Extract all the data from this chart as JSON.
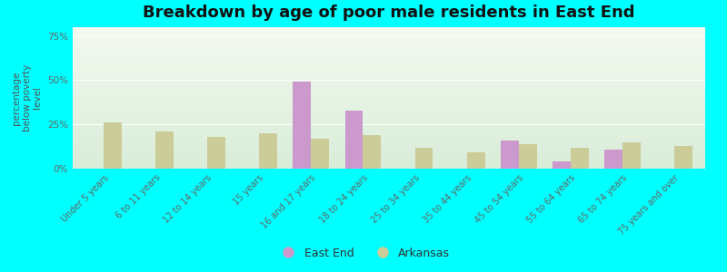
{
  "title": "Breakdown by age of poor male residents in East End",
  "ylabel": "percentage\nbelow poverty\nlevel",
  "categories": [
    "Under 5 years",
    "6 to 11 years",
    "12 to 14 years",
    "15 years",
    "16 and 17 years",
    "18 to 24 years",
    "25 to 34 years",
    "35 to 44 years",
    "45 to 54 years",
    "55 to 64 years",
    "65 to 74 years",
    "75 years and over"
  ],
  "east_end": [
    0,
    0,
    0,
    0,
    49,
    33,
    0,
    0,
    16,
    4,
    11,
    0
  ],
  "arkansas": [
    26,
    21,
    18,
    20,
    17,
    19,
    12,
    9,
    14,
    12,
    15,
    13
  ],
  "east_end_color": "#cc99cc",
  "arkansas_color": "#cccc99",
  "bg_top_color": "#f5f8ee",
  "bg_bottom_color": "#ddeedd",
  "outer_bg": "#00ffff",
  "ylim": [
    0,
    80
  ],
  "yticks": [
    0,
    25,
    50,
    75
  ],
  "ytick_labels": [
    "0%",
    "25%",
    "50%",
    "75%"
  ],
  "title_fontsize": 13,
  "axis_label_fontsize": 7.5,
  "tick_fontsize": 7.5,
  "legend_fontsize": 9,
  "bar_width": 0.35
}
